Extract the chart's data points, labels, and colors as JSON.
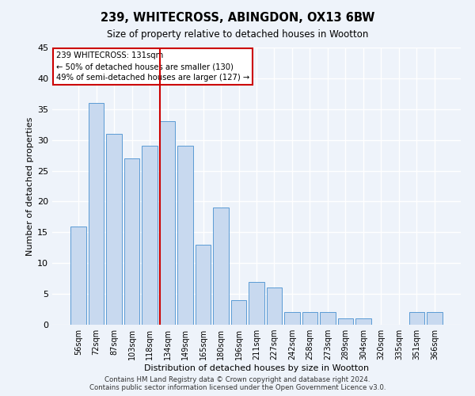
{
  "title1": "239, WHITECROSS, ABINGDON, OX13 6BW",
  "title2": "Size of property relative to detached houses in Wootton",
  "xlabel": "Distribution of detached houses by size in Wootton",
  "ylabel": "Number of detached properties",
  "categories": [
    "56sqm",
    "72sqm",
    "87sqm",
    "103sqm",
    "118sqm",
    "134sqm",
    "149sqm",
    "165sqm",
    "180sqm",
    "196sqm",
    "211sqm",
    "227sqm",
    "242sqm",
    "258sqm",
    "273sqm",
    "289sqm",
    "304sqm",
    "320sqm",
    "335sqm",
    "351sqm",
    "366sqm"
  ],
  "values": [
    16,
    36,
    31,
    27,
    29,
    33,
    29,
    13,
    19,
    4,
    7,
    6,
    2,
    2,
    2,
    1,
    1,
    0,
    0,
    2,
    2
  ],
  "bar_color": "#c8d9ef",
  "bar_edge_color": "#5b9bd5",
  "vline_index": 5,
  "vline_color": "#cc0000",
  "annotation_lines": [
    "239 WHITECROSS: 131sqm",
    "← 50% of detached houses are smaller (130)",
    "49% of semi-detached houses are larger (127) →"
  ],
  "ylim": [
    0,
    45
  ],
  "yticks": [
    0,
    5,
    10,
    15,
    20,
    25,
    30,
    35,
    40,
    45
  ],
  "footer1": "Contains HM Land Registry data © Crown copyright and database right 2024.",
  "footer2": "Contains public sector information licensed under the Open Government Licence v3.0.",
  "bg_color": "#eef3fa",
  "grid_color": "#ffffff"
}
